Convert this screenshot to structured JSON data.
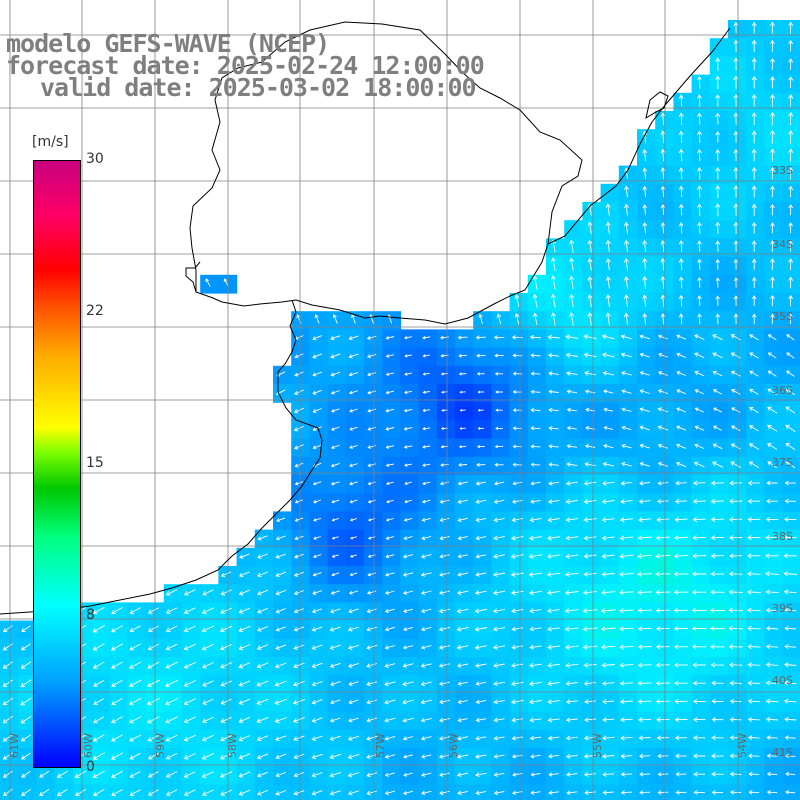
{
  "title": {
    "line1": "modelo GEFS-WAVE (NCEP)",
    "line2": "forecast date: 2025-02-24 12:00:00",
    "line3": "valid date: 2025-03-02 18:00:00"
  },
  "colorbar": {
    "unit": "[m/s]",
    "min": 0,
    "max": 30,
    "ticks": [
      "30",
      "22",
      "15",
      "8",
      "0"
    ],
    "tick_values": [
      30,
      22,
      15,
      8,
      0
    ]
  },
  "grid_labels": {
    "lat": [
      "33S",
      "34S",
      "35S",
      "36S",
      "37S",
      "38S",
      "39S",
      "40S",
      "41S"
    ],
    "lon": [
      "61W",
      "60W",
      "59W",
      "58W",
      "57W",
      "56W",
      "55W",
      "54W"
    ]
  },
  "colors": {
    "land": "#ffffff",
    "coast": "#000000",
    "grid": "#808080",
    "arrows": "#ffffff",
    "title": "#7f7f7f"
  }
}
